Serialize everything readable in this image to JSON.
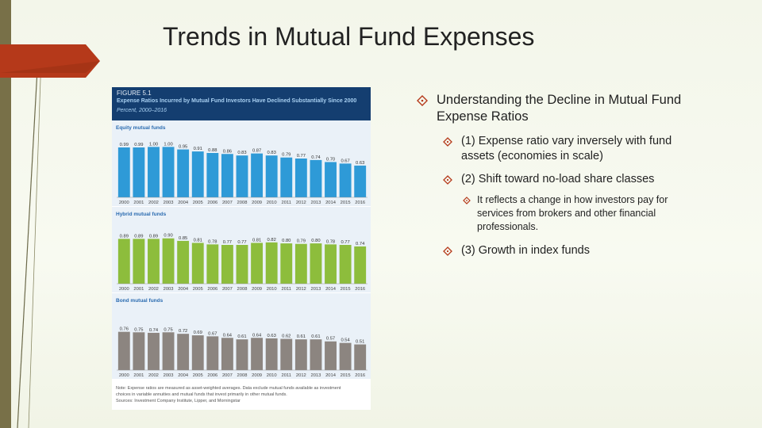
{
  "slide": {
    "title": "Trends in Mutual Fund Expenses",
    "accent_color": "#b5391a",
    "bar_color": "#787048"
  },
  "figure": {
    "label": "FIGURE 5.1",
    "title": "Expense Ratios Incurred by Mutual Fund Investors Have Declined Substantially Since 2000",
    "subtitle": "Percent, 2000–2016",
    "note_lines": [
      "Note: Expense ratios are measured as asset-weighted averages. Data exclude mutual funds available as investment",
      "choices in variable annuities and mutual funds that invest primarily in other mutual funds.",
      "Sources: Investment Company Institute, Lipper, and Morningstar"
    ]
  },
  "chart_data": [
    {
      "type": "bar",
      "title": "Equity mutual funds",
      "color": "#2e9ad7",
      "categories": [
        "2000",
        "2001",
        "2002",
        "2003",
        "2004",
        "2005",
        "2006",
        "2007",
        "2008",
        "2009",
        "2010",
        "2011",
        "2012",
        "2013",
        "2014",
        "2015",
        "2016"
      ],
      "values": [
        0.99,
        0.99,
        1.0,
        1.0,
        0.95,
        0.91,
        0.88,
        0.86,
        0.83,
        0.87,
        0.83,
        0.79,
        0.77,
        0.74,
        0.7,
        0.67,
        0.63
      ],
      "labels": [
        "0.99",
        "0.99",
        "1.00",
        "1.00",
        "0.95",
        "0.91",
        "0.88",
        "0.86",
        "0.83",
        "0.87",
        "0.83",
        "0.79",
        "0.77",
        "0.74",
        "0.70",
        "0.67",
        "0.63"
      ],
      "ylim": [
        0,
        1.1
      ]
    },
    {
      "type": "bar",
      "title": "Hybrid mutual funds",
      "color": "#8dbd3c",
      "categories": [
        "2000",
        "2001",
        "2002",
        "2003",
        "2004",
        "2005",
        "2006",
        "2007",
        "2008",
        "2009",
        "2010",
        "2011",
        "2012",
        "2013",
        "2014",
        "2015",
        "2016"
      ],
      "values": [
        0.89,
        0.89,
        0.89,
        0.9,
        0.85,
        0.81,
        0.78,
        0.77,
        0.77,
        0.81,
        0.82,
        0.8,
        0.79,
        0.8,
        0.78,
        0.77,
        0.74
      ],
      "labels": [
        "0.89",
        "0.89",
        "0.89",
        "0.90",
        "0.85",
        "0.81",
        "0.78",
        "0.77",
        "0.77",
        "0.81",
        "0.82",
        "0.80",
        "0.79",
        "0.80",
        "0.78",
        "0.77",
        "0.74"
      ],
      "ylim": [
        0,
        1.1
      ]
    },
    {
      "type": "bar",
      "title": "Bond mutual funds",
      "color": "#8c8580",
      "categories": [
        "2000",
        "2001",
        "2002",
        "2003",
        "2004",
        "2005",
        "2006",
        "2007",
        "2008",
        "2009",
        "2010",
        "2011",
        "2012",
        "2013",
        "2014",
        "2015",
        "2016"
      ],
      "values": [
        0.76,
        0.75,
        0.74,
        0.75,
        0.72,
        0.69,
        0.67,
        0.64,
        0.61,
        0.64,
        0.63,
        0.62,
        0.61,
        0.61,
        0.57,
        0.54,
        0.51
      ],
      "labels": [
        "0.76",
        "0.75",
        "0.74",
        "0.75",
        "0.72",
        "0.69",
        "0.67",
        "0.64",
        "0.61",
        "0.64",
        "0.63",
        "0.62",
        "0.61",
        "0.61",
        "0.57",
        "0.54",
        "0.51"
      ],
      "ylim": [
        0,
        1.1
      ]
    }
  ],
  "bullets": {
    "main": "Understanding the Decline in Mutual Fund Expense Ratios",
    "main_lines": [
      "Understanding the Decline in Mutual Fund",
      "Expense Ratios"
    ],
    "sub1_lines": [
      "(1) Expense ratio vary inversely with fund",
      "assets (economies in scale)"
    ],
    "sub2": "(2) Shift toward no-load share classes",
    "sub2_detail_lines": [
      "It reflects a change in how investors pay for",
      "services from brokers and other financial",
      "professionals."
    ],
    "sub3": "(3) Growth in index funds"
  },
  "icons": {
    "bullet": "diamond-bullet-icon",
    "decoration": "arrow-tab-icon"
  }
}
